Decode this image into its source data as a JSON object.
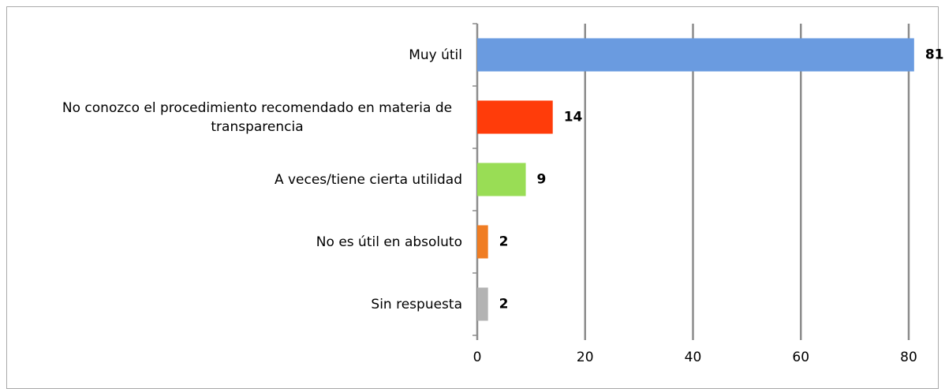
{
  "chart_data": {
    "type": "bar",
    "orientation": "horizontal",
    "categories": [
      "Muy útil",
      "No conozco el procedimiento recomendado en materia de transparencia",
      "A veces/tiene cierta utilidad",
      "No es útil en absoluto",
      "Sin respuesta"
    ],
    "values": [
      81,
      14,
      9,
      2,
      2
    ],
    "colors": [
      "#6a9be0",
      "#ff3c0a",
      "#99dd55",
      "#f07d23",
      "#b3b3b3"
    ],
    "xlim": [
      0,
      80
    ],
    "xticks": [
      0,
      20,
      40,
      60,
      80
    ],
    "grid": true
  }
}
